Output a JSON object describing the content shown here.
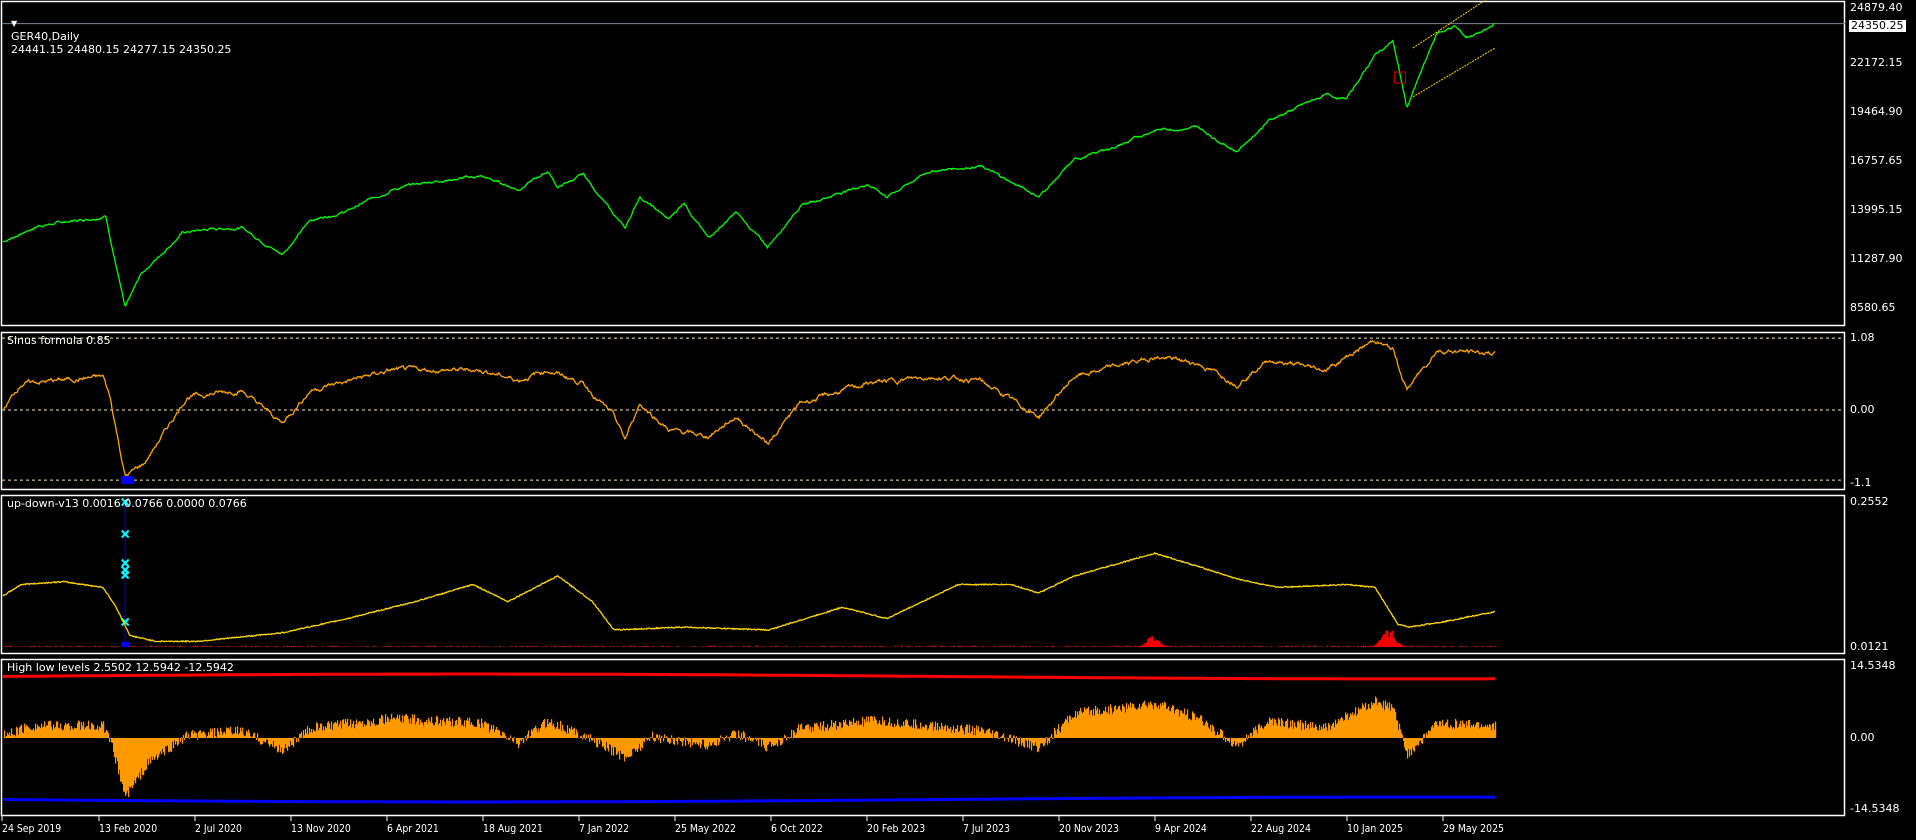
{
  "header": {
    "symbol_timeframe": "GER40,Daily",
    "ohlc": "24441.15 24480.15 24277.15 24350.25",
    "menu_icon": "triangle-down-icon"
  },
  "colors": {
    "price": "#00ff00",
    "channel": "#ffd700",
    "sinus": "#ffa500",
    "updown_line": "#ffd700",
    "updown_bars": "#ff0000",
    "updown_spike": "#0000ff",
    "markers": "#00ffff",
    "high_level": "#ff0000",
    "low_level": "#0000ff",
    "histogram": "#ff9900",
    "grid": "#ffe4b5"
  },
  "main": {
    "current_price": "24350.25",
    "axis_labels": [
      "24879.40",
      "22172.15",
      "19464.90",
      "16757.65",
      "13995.15",
      "11287.90",
      "8580.65"
    ],
    "chart_data": {
      "type": "line",
      "series": [
        {
          "points": [
            [
              "2019-09-24",
              12300
            ],
            [
              "2019-11-15",
              13200
            ],
            [
              "2020-01-15",
              13500
            ],
            [
              "2020-02-19",
              13750
            ],
            [
              "2020-03-18",
              8600
            ],
            [
              "2020-04-10",
              10500
            ],
            [
              "2020-06-08",
              12800
            ],
            [
              "2020-07-20",
              13000
            ],
            [
              "2020-09-01",
              13100
            ],
            [
              "2020-10-30",
              11600
            ],
            [
              "2020-12-10",
              13500
            ],
            [
              "2021-02-01",
              14000
            ],
            [
              "2021-04-06",
              15200
            ],
            [
              "2021-06-15",
              15700
            ],
            [
              "2021-08-13",
              15900
            ],
            [
              "2021-10-05",
              15200
            ],
            [
              "2021-11-17",
              16200
            ],
            [
              "2021-12-01",
              15300
            ],
            [
              "2022-01-07",
              16000
            ],
            [
              "2022-03-08",
              13000
            ],
            [
              "2022-03-29",
              14800
            ],
            [
              "2022-05-10",
              13500
            ],
            [
              "2022-06-01",
              14500
            ],
            [
              "2022-07-05",
              12500
            ],
            [
              "2022-08-15",
              13900
            ],
            [
              "2022-09-29",
              12000
            ],
            [
              "2022-11-15",
              14300
            ],
            [
              "2023-02-20",
              15500
            ],
            [
              "2023-03-20",
              14800
            ],
            [
              "2023-05-20",
              16200
            ],
            [
              "2023-07-31",
              16500
            ],
            [
              "2023-10-25",
              14800
            ],
            [
              "2023-12-15",
              16800
            ],
            [
              "2024-03-01",
              17800
            ],
            [
              "2024-04-09",
              18500
            ],
            [
              "2024-06-10",
              18600
            ],
            [
              "2024-08-05",
              17300
            ],
            [
              "2024-09-20",
              19000
            ],
            [
              "2024-12-10",
              20400
            ],
            [
              "2025-01-10",
              20200
            ],
            [
              "2025-02-20",
              22600
            ],
            [
              "2025-03-18",
              23400
            ],
            [
              "2025-04-07",
              19700
            ],
            [
              "2025-05-20",
              23800
            ],
            [
              "2025-06-15",
              24200
            ],
            [
              "2025-07-01",
              23600
            ],
            [
              "2025-08-01",
              24000
            ],
            [
              "2025-08-12",
              24350
            ]
          ]
        }
      ],
      "channel_upper": [
        [
          "2025-04-07",
          23000
        ],
        [
          "2025-08-12",
          26000
        ]
      ],
      "channel_lower": [
        [
          "2025-04-07",
          20300
        ],
        [
          "2025-08-12",
          23000
        ]
      ],
      "yrange": [
        7800,
        25500
      ]
    }
  },
  "sinus": {
    "title": "Sinus formula 0.85",
    "axis_labels": [
      "1.08",
      "0.00",
      "-1.1"
    ],
    "levels": [
      1.08,
      0.0,
      -1.1
    ],
    "points": [
      [
        "2019-09-24",
        0.0
      ],
      [
        "2019-10-20",
        0.4
      ],
      [
        "2020-02-15",
        0.5
      ],
      [
        "2020-02-25",
        0.2
      ],
      [
        "2020-03-18",
        -1.0
      ],
      [
        "2020-04-15",
        -0.8
      ],
      [
        "2020-06-15",
        0.2
      ],
      [
        "2020-09-01",
        0.3
      ],
      [
        "2020-10-30",
        -0.2
      ],
      [
        "2020-12-10",
        0.3
      ],
      [
        "2021-04-06",
        0.6
      ],
      [
        "2021-08-13",
        0.6
      ],
      [
        "2021-10-05",
        0.45
      ],
      [
        "2021-11-17",
        0.6
      ],
      [
        "2022-01-07",
        0.4
      ],
      [
        "2022-02-20",
        -0.1
      ],
      [
        "2022-03-08",
        -0.45
      ],
      [
        "2022-03-29",
        0.1
      ],
      [
        "2022-05-10",
        -0.3
      ],
      [
        "2022-07-05",
        -0.4
      ],
      [
        "2022-08-15",
        -0.1
      ],
      [
        "2022-09-29",
        -0.5
      ],
      [
        "2022-11-15",
        0.1
      ],
      [
        "2023-02-20",
        0.4
      ],
      [
        "2023-05-20",
        0.5
      ],
      [
        "2023-07-31",
        0.45
      ],
      [
        "2023-10-25",
        -0.1
      ],
      [
        "2023-12-15",
        0.5
      ],
      [
        "2024-04-09",
        0.8
      ],
      [
        "2024-06-10",
        0.7
      ],
      [
        "2024-08-05",
        0.4
      ],
      [
        "2024-09-20",
        0.75
      ],
      [
        "2024-12-10",
        0.6
      ],
      [
        "2025-02-20",
        1.05
      ],
      [
        "2025-03-18",
        0.9
      ],
      [
        "2025-04-07",
        0.3
      ],
      [
        "2025-05-20",
        0.9
      ],
      [
        "2025-08-12",
        0.85
      ]
    ]
  },
  "updown": {
    "title": "up-down-v13 0.0016 0.0766 0.0000 0.0766",
    "axis_labels": [
      "0.2552",
      "0.0121"
    ],
    "ymax": 0.2552,
    "points": [
      [
        "2019-09-24",
        0.09
      ],
      [
        "2019-10-20",
        0.11
      ],
      [
        "2019-12-20",
        0.115
      ],
      [
        "2020-02-15",
        0.105
      ],
      [
        "2020-03-05",
        0.07
      ],
      [
        "2020-03-25",
        0.02
      ],
      [
        "2020-05-01",
        0.01
      ],
      [
        "2020-07-01",
        0.01
      ],
      [
        "2020-10-30",
        0.025
      ],
      [
        "2021-02-01",
        0.05
      ],
      [
        "2021-05-10",
        0.08
      ],
      [
        "2021-08-01",
        0.11
      ],
      [
        "2021-09-20",
        0.08
      ],
      [
        "2021-12-01",
        0.125
      ],
      [
        "2022-01-20",
        0.08
      ],
      [
        "2022-02-20",
        0.03
      ],
      [
        "2022-06-01",
        0.035
      ],
      [
        "2022-10-01",
        0.03
      ],
      [
        "2023-01-15",
        0.07
      ],
      [
        "2023-03-20",
        0.05
      ],
      [
        "2023-07-01",
        0.11
      ],
      [
        "2023-09-15",
        0.11
      ],
      [
        "2023-10-25",
        0.095
      ],
      [
        "2023-12-15",
        0.125
      ],
      [
        "2024-04-09",
        0.165
      ],
      [
        "2024-06-15",
        0.14
      ],
      [
        "2024-08-05",
        0.12
      ],
      [
        "2024-10-01",
        0.105
      ],
      [
        "2025-01-10",
        0.11
      ],
      [
        "2025-02-20",
        0.105
      ],
      [
        "2025-03-25",
        0.04
      ],
      [
        "2025-04-10",
        0.035
      ],
      [
        "2025-06-01",
        0.045
      ],
      [
        "2025-08-12",
        0.062
      ]
    ],
    "red_bursts": [
      [
        "2024-04-05",
        0.02
      ],
      [
        "2025-03-10",
        0.035
      ]
    ],
    "spike": [
      [
        "2020-03-18",
        0.0766
      ]
    ]
  },
  "highlow": {
    "title": "High low levels 2.5502 12.5942 -12.5942",
    "axis_labels": [
      "14.5348",
      "0.00",
      "-14.5348"
    ],
    "ymax": 14.5348,
    "high_level": 12.5942,
    "low_level": -12.5942,
    "points": [
      [
        "2019-09-24",
        0.5
      ],
      [
        "2019-11-01",
        2.5
      ],
      [
        "2020-02-15",
        2.5
      ],
      [
        "2020-02-28",
        -2
      ],
      [
        "2020-03-18",
        -12
      ],
      [
        "2020-04-20",
        -5
      ],
      [
        "2020-06-15",
        0.5
      ],
      [
        "2020-09-01",
        1.5
      ],
      [
        "2020-10-30",
        -2.5
      ],
      [
        "2020-12-10",
        2
      ],
      [
        "2021-04-06",
        4
      ],
      [
        "2021-08-13",
        3
      ],
      [
        "2021-10-05",
        -1
      ],
      [
        "2021-11-17",
        3.5
      ],
      [
        "2022-01-07",
        0.5
      ],
      [
        "2022-03-08",
        -4
      ],
      [
        "2022-04-15",
        0.3
      ],
      [
        "2022-07-05",
        -1.5
      ],
      [
        "2022-08-15",
        1
      ],
      [
        "2022-09-29",
        -2
      ],
      [
        "2022-11-15",
        2
      ],
      [
        "2023-03-01",
        3.5
      ],
      [
        "2023-05-20",
        2.5
      ],
      [
        "2023-07-31",
        1.5
      ],
      [
        "2023-10-25",
        -2
      ],
      [
        "2023-12-15",
        5
      ],
      [
        "2024-04-09",
        7
      ],
      [
        "2024-06-10",
        4
      ],
      [
        "2024-08-05",
        -1.5
      ],
      [
        "2024-09-20",
        3.5
      ],
      [
        "2024-12-10",
        2
      ],
      [
        "2025-02-20",
        7.5
      ],
      [
        "2025-03-18",
        6
      ],
      [
        "2025-04-07",
        -3.5
      ],
      [
        "2025-05-20",
        3
      ],
      [
        "2025-08-12",
        2.5
      ]
    ]
  },
  "time_axis": [
    "24 Sep 2019",
    "13 Feb 2020",
    "2 Jul 2020",
    "13 Nov 2020",
    "6 Apr 2021",
    "18 Aug 2021",
    "7 Jan 2022",
    "25 May 2022",
    "6 Oct 2022",
    "20 Feb 2023",
    "7 Jul 2023",
    "20 Nov 2023",
    "9 Apr 2024",
    "22 Aug 2024",
    "10 Jan 2025",
    "29 May 2025"
  ]
}
